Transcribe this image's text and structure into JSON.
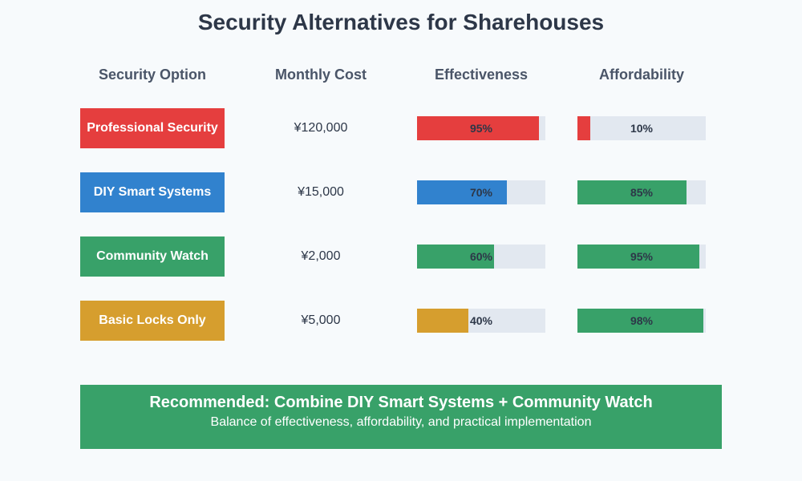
{
  "title": "Security Alternatives for Sharehouses",
  "headers": [
    "Security Option",
    "Monthly Cost",
    "Effectiveness",
    "Affordability"
  ],
  "rows": [
    {
      "option": "Professional Security",
      "color": "#e53e3e",
      "cost": "¥120,000",
      "effectiveness": 95,
      "effectiveness_label": "95%",
      "effectiveness_color": "#e53e3e",
      "affordability": 10,
      "affordability_label": "10%",
      "affordability_color": "#e53e3e"
    },
    {
      "option": "DIY Smart Systems",
      "color": "#3182ce",
      "cost": "¥15,000",
      "effectiveness": 70,
      "effectiveness_label": "70%",
      "effectiveness_color": "#3182ce",
      "affordability": 85,
      "affordability_label": "85%",
      "affordability_color": "#38a169"
    },
    {
      "option": "Community Watch",
      "color": "#38a169",
      "cost": "¥2,000",
      "effectiveness": 60,
      "effectiveness_label": "60%",
      "effectiveness_color": "#38a169",
      "affordability": 95,
      "affordability_label": "95%",
      "affordability_color": "#38a169"
    },
    {
      "option": "Basic Locks Only",
      "color": "#d69e2e",
      "cost": "¥5,000",
      "effectiveness": 40,
      "effectiveness_label": "40%",
      "effectiveness_color": "#d69e2e",
      "affordability": 98,
      "affordability_label": "98%",
      "affordability_color": "#38a169"
    }
  ],
  "recommendation": {
    "title": "Recommended: Combine DIY Smart Systems + Community Watch",
    "subtitle": "Balance of effectiveness, affordability, and practical implementation"
  },
  "chart_data": {
    "type": "table",
    "title": "Security Alternatives for Sharehouses",
    "columns": [
      "Security Option",
      "Monthly Cost",
      "Effectiveness",
      "Affordability"
    ],
    "categories": [
      "Professional Security",
      "DIY Smart Systems",
      "Community Watch",
      "Basic Locks Only"
    ],
    "monthly_cost_yen": [
      120000,
      15000,
      2000,
      5000
    ],
    "series": [
      {
        "name": "Effectiveness",
        "unit": "%",
        "values": [
          95,
          70,
          60,
          40
        ]
      },
      {
        "name": "Affordability",
        "unit": "%",
        "values": [
          10,
          85,
          95,
          98
        ]
      }
    ],
    "ylim": [
      0,
      100
    ],
    "annotations": [
      "Recommended: Combine DIY Smart Systems + Community Watch",
      "Balance of effectiveness, affordability, and practical implementation"
    ]
  }
}
